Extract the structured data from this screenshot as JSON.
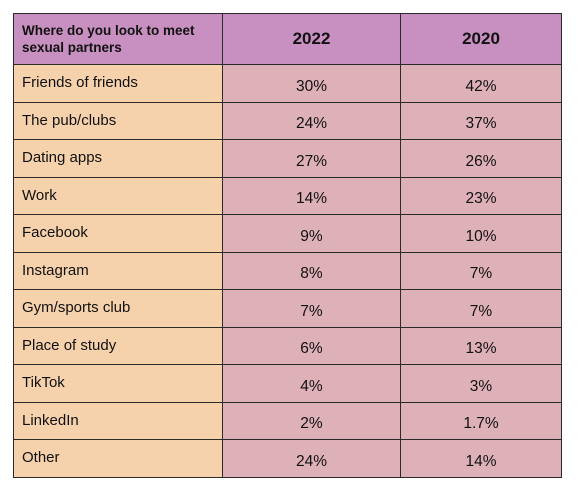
{
  "chart_data": {
    "type": "table",
    "columns": [
      "Where do you look to meet sexual partners",
      "2022",
      "2020"
    ],
    "rows": [
      {
        "category": "Friends of friends",
        "v2022": "30%",
        "v2020": "42%"
      },
      {
        "category": "The pub/clubs",
        "v2022": "24%",
        "v2020": "37%"
      },
      {
        "category": "Dating apps",
        "v2022": "27%",
        "v2020": "26%"
      },
      {
        "category": "Work",
        "v2022": "14%",
        "v2020": "23%"
      },
      {
        "category": "Facebook",
        "v2022": "9%",
        "v2020": "10%"
      },
      {
        "category": "Instagram",
        "v2022": "8%",
        "v2020": "7%"
      },
      {
        "category": "Gym/sports club",
        "v2022": "7%",
        "v2020": "7%"
      },
      {
        "category": "Place of study",
        "v2022": "6%",
        "v2020": "13%"
      },
      {
        "category": "TikTok",
        "v2022": "4%",
        "v2020": "3%"
      },
      {
        "category": "LinkedIn",
        "v2022": "2%",
        "v2020": "1.7%"
      },
      {
        "category": "Other",
        "v2022": "24%",
        "v2020": "14%"
      }
    ]
  },
  "colors": {
    "header": "#c890c0",
    "category_cells": "#f6d2ac",
    "value_cells": "#deb0b8",
    "border": "#2a2a2a"
  }
}
